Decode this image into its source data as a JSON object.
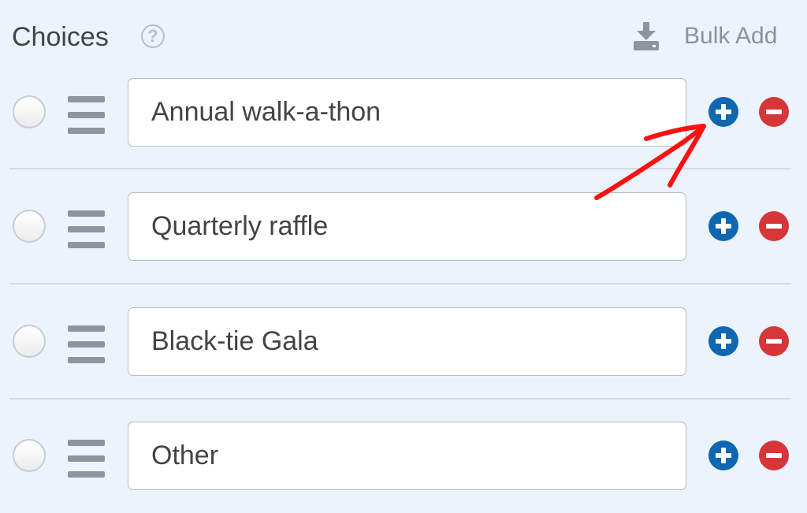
{
  "header": {
    "title": "Choices",
    "help_icon": "question-circle-icon",
    "bulk_add_label": "Bulk Add",
    "bulk_add_icon": "download-icon"
  },
  "choices": [
    {
      "value": "Annual walk-a-thon"
    },
    {
      "value": "Quarterly raffle"
    },
    {
      "value": "Black-tie Gala"
    },
    {
      "value": "Other"
    }
  ],
  "colors": {
    "background": "#ebf3fc",
    "add": "#0e67b0",
    "remove": "#d63638",
    "annotation_arrow": "#ff0000"
  },
  "annotation": {
    "type": "red-arrow",
    "points_to": "add-choice-button (first row)"
  }
}
